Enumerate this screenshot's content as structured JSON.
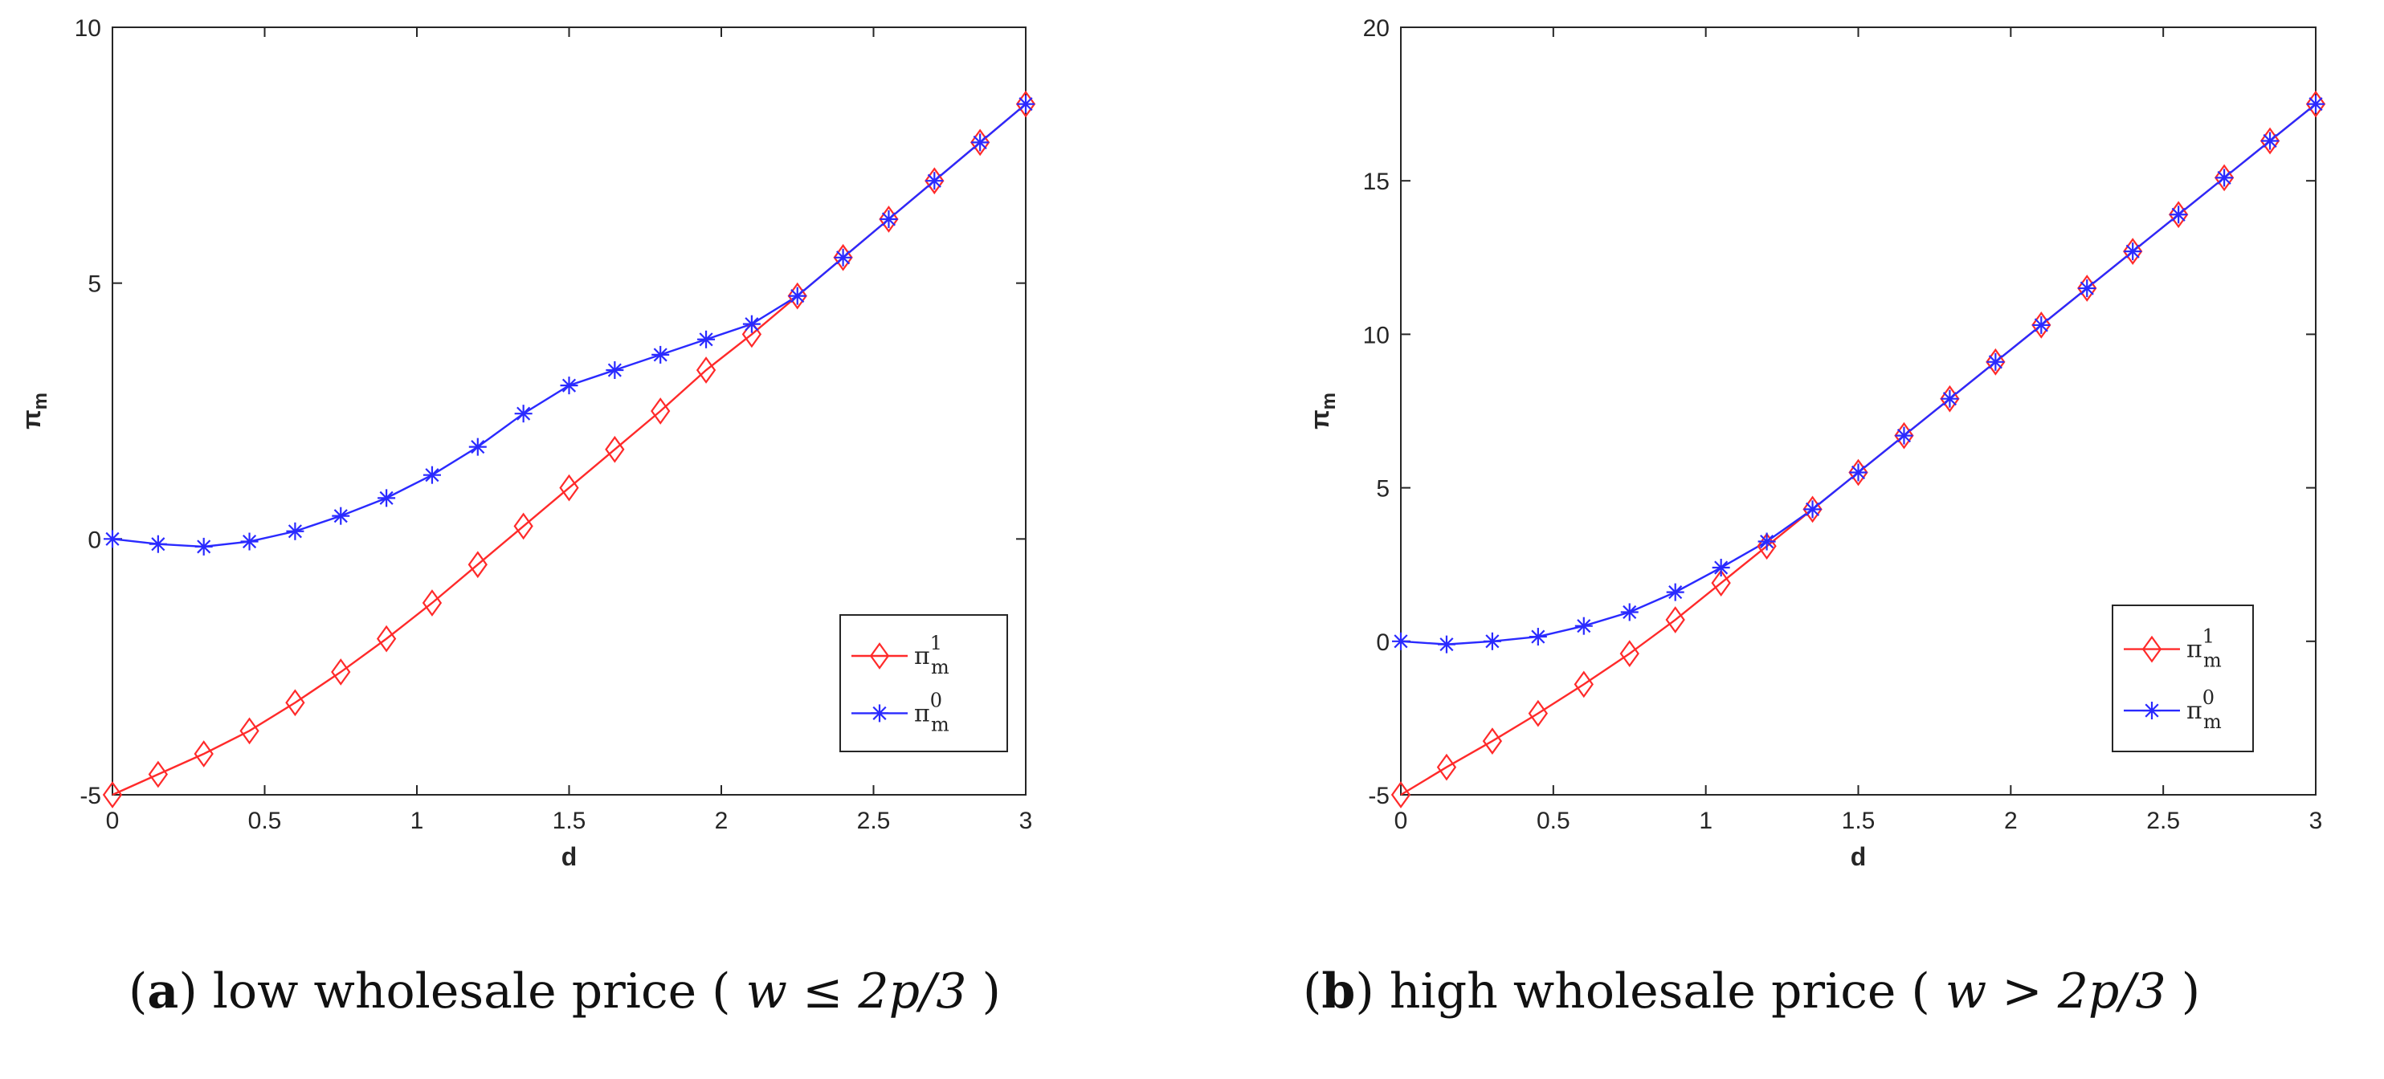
{
  "chart_data": [
    {
      "type": "line",
      "panel_letter": "a",
      "caption": "low wholesale price",
      "caption_math": "w ≤ 2p/3",
      "xlabel": "d",
      "ylabel": "π",
      "ylabel_sub": "m",
      "xlim": [
        0,
        3
      ],
      "ylim": [
        -5,
        10
      ],
      "xticks": [
        0,
        0.5,
        1,
        1.5,
        2,
        2.5,
        3
      ],
      "xtick_labels": [
        "0",
        "0.5",
        "1",
        "1.5",
        "2",
        "2.5",
        "3"
      ],
      "yticks": [
        -5,
        0,
        5,
        10
      ],
      "ytick_labels": [
        "-5",
        "0",
        "5",
        "10"
      ],
      "legend_position": "lower-right",
      "x": [
        0,
        0.15,
        0.3,
        0.45,
        0.6,
        0.75,
        0.9,
        1.05,
        1.2,
        1.35,
        1.5,
        1.65,
        1.8,
        1.95,
        2.1,
        2.25,
        2.4,
        2.55,
        2.7,
        2.85,
        3.0
      ],
      "series": [
        {
          "name": "π",
          "sub": "m",
          "sup": "1",
          "marker": "diamond",
          "color": "#ff2a2a",
          "values": [
            -5.0,
            -4.6,
            -4.2,
            -3.75,
            -3.2,
            -2.6,
            -1.95,
            -1.25,
            -0.5,
            0.25,
            1.0,
            1.75,
            2.5,
            3.3,
            4.0,
            4.75,
            5.5,
            6.25,
            7.0,
            7.75,
            8.5
          ]
        },
        {
          "name": "π",
          "sub": "m",
          "sup": "0",
          "marker": "asterisk",
          "color": "#2a2aff",
          "values": [
            0.0,
            -0.1,
            -0.15,
            -0.05,
            0.15,
            0.45,
            0.8,
            1.25,
            1.8,
            2.45,
            3.0,
            3.3,
            3.6,
            3.9,
            4.2,
            4.75,
            5.5,
            6.25,
            7.0,
            7.75,
            8.5
          ]
        }
      ]
    },
    {
      "type": "line",
      "panel_letter": "b",
      "caption": "high wholesale price",
      "caption_math": "w > 2p/3",
      "xlabel": "d",
      "ylabel": "π",
      "ylabel_sub": "m",
      "xlim": [
        0,
        3
      ],
      "ylim": [
        -5,
        20
      ],
      "xticks": [
        0,
        0.5,
        1,
        1.5,
        2,
        2.5,
        3
      ],
      "xtick_labels": [
        "0",
        "0.5",
        "1",
        "1.5",
        "2",
        "2.5",
        "3"
      ],
      "yticks": [
        -5,
        0,
        5,
        10,
        15,
        20
      ],
      "ytick_labels": [
        "-5",
        "0",
        "5",
        "10",
        "15",
        "20"
      ],
      "legend_position": "lower-right",
      "x": [
        0,
        0.15,
        0.3,
        0.45,
        0.6,
        0.75,
        0.9,
        1.05,
        1.2,
        1.35,
        1.5,
        1.65,
        1.8,
        1.95,
        2.1,
        2.25,
        2.4,
        2.55,
        2.7,
        2.85,
        3.0
      ],
      "series": [
        {
          "name": "π",
          "sub": "m",
          "sup": "1",
          "marker": "diamond",
          "color": "#ff2a2a",
          "values": [
            -5.0,
            -4.1,
            -3.25,
            -2.35,
            -1.4,
            -0.4,
            0.7,
            1.9,
            3.1,
            4.3,
            5.5,
            6.7,
            7.9,
            9.1,
            10.3,
            11.5,
            12.7,
            13.9,
            15.1,
            16.3,
            17.5
          ]
        },
        {
          "name": "π",
          "sub": "m",
          "sup": "0",
          "marker": "asterisk",
          "color": "#2a2aff",
          "values": [
            0.0,
            -0.1,
            0.0,
            0.15,
            0.5,
            0.95,
            1.6,
            2.4,
            3.25,
            4.3,
            5.5,
            6.7,
            7.9,
            9.1,
            10.3,
            11.5,
            12.7,
            13.9,
            15.1,
            16.3,
            17.5
          ]
        }
      ]
    }
  ]
}
